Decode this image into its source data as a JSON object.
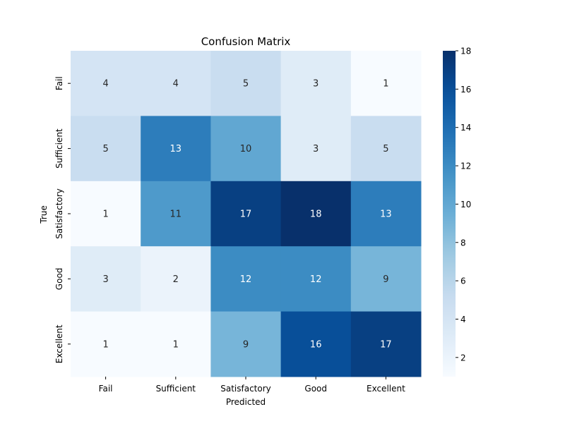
{
  "chart_data": {
    "type": "heatmap",
    "title": "Confusion Matrix",
    "xlabel": "Predicted",
    "ylabel": "True",
    "x_categories": [
      "Fail",
      "Sufficient",
      "Satisfactory",
      "Good",
      "Excellent"
    ],
    "y_categories": [
      "Fail",
      "Sufficient",
      "Satisfactory",
      "Good",
      "Excellent"
    ],
    "values": [
      [
        4,
        4,
        5,
        3,
        1
      ],
      [
        5,
        13,
        10,
        3,
        5
      ],
      [
        1,
        11,
        17,
        18,
        13
      ],
      [
        3,
        2,
        12,
        12,
        9
      ],
      [
        1,
        1,
        9,
        16,
        17
      ]
    ],
    "colormap": "Blues",
    "color_range": [
      1,
      18
    ],
    "colorbar_ticks": [
      2,
      4,
      6,
      8,
      10,
      12,
      14,
      16,
      18
    ],
    "grid": false,
    "colorbar": "right"
  }
}
